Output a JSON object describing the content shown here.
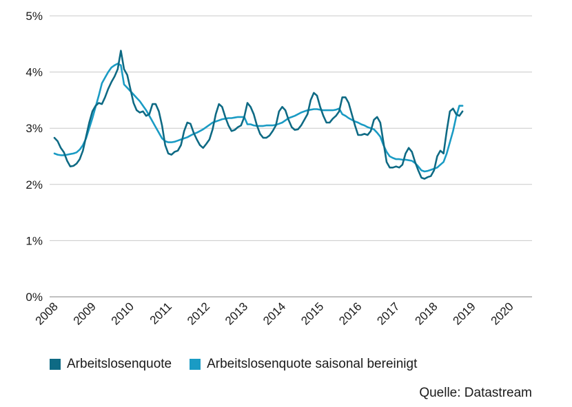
{
  "chart_data": {
    "type": "line",
    "ylim": [
      0,
      5
    ],
    "yticks": [
      "0%",
      "1%",
      "2%",
      "3%",
      "4%",
      "5%"
    ],
    "xticks": [
      "2008",
      "2009",
      "2010",
      "2011",
      "2012",
      "2013",
      "2014",
      "2015",
      "2016",
      "2017",
      "2018",
      "2019",
      "2020"
    ],
    "grid": "horizontal",
    "legend_position": "bottom",
    "x_start": 2008.0,
    "x_step": 0.08333,
    "series": [
      {
        "name": "Arbeitslosenquote",
        "color": "#0e6a84",
        "values": [
          2.83,
          2.77,
          2.65,
          2.57,
          2.42,
          2.32,
          2.33,
          2.37,
          2.45,
          2.6,
          2.85,
          3.1,
          3.3,
          3.4,
          3.45,
          3.43,
          3.55,
          3.7,
          3.82,
          3.92,
          4.05,
          4.38,
          4.05,
          3.95,
          3.7,
          3.45,
          3.32,
          3.28,
          3.3,
          3.22,
          3.25,
          3.43,
          3.43,
          3.3,
          3.05,
          2.7,
          2.55,
          2.53,
          2.58,
          2.6,
          2.7,
          2.95,
          3.1,
          3.08,
          2.92,
          2.8,
          2.7,
          2.65,
          2.72,
          2.8,
          2.98,
          3.25,
          3.43,
          3.38,
          3.2,
          3.05,
          2.95,
          2.97,
          3.02,
          3.05,
          3.2,
          3.45,
          3.38,
          3.25,
          3.05,
          2.9,
          2.83,
          2.83,
          2.87,
          2.95,
          3.05,
          3.3,
          3.38,
          3.32,
          3.15,
          3.02,
          2.97,
          2.98,
          3.05,
          3.15,
          3.25,
          3.5,
          3.63,
          3.58,
          3.38,
          3.22,
          3.1,
          3.1,
          3.17,
          3.22,
          3.3,
          3.55,
          3.55,
          3.45,
          3.25,
          3.05,
          2.88,
          2.88,
          2.9,
          2.88,
          2.95,
          3.15,
          3.2,
          3.1,
          2.75,
          2.4,
          2.3,
          2.3,
          2.32,
          2.3,
          2.35,
          2.55,
          2.65,
          2.58,
          2.4,
          2.25,
          2.12,
          2.1,
          2.13,
          2.15,
          2.25,
          2.5,
          2.6,
          2.55,
          2.95,
          3.3,
          3.35,
          3.25,
          3.22,
          3.3
        ]
      },
      {
        "name": "Arbeitslosenquote saisonal bereinigt",
        "color": "#1a9bc4",
        "values": [
          2.55,
          2.53,
          2.52,
          2.52,
          2.53,
          2.54,
          2.55,
          2.57,
          2.62,
          2.7,
          2.82,
          3.0,
          3.18,
          3.38,
          3.58,
          3.8,
          3.9,
          4.0,
          4.08,
          4.12,
          4.15,
          4.12,
          3.78,
          3.72,
          3.66,
          3.6,
          3.54,
          3.48,
          3.4,
          3.32,
          3.22,
          3.12,
          3.02,
          2.92,
          2.82,
          2.77,
          2.75,
          2.75,
          2.76,
          2.78,
          2.8,
          2.82,
          2.84,
          2.87,
          2.9,
          2.92,
          2.95,
          2.98,
          3.02,
          3.06,
          3.1,
          3.12,
          3.14,
          3.16,
          3.17,
          3.18,
          3.18,
          3.19,
          3.2,
          3.2,
          3.2,
          3.07,
          3.07,
          3.05,
          3.04,
          3.04,
          3.04,
          3.05,
          3.05,
          3.05,
          3.06,
          3.08,
          3.1,
          3.14,
          3.18,
          3.2,
          3.22,
          3.25,
          3.28,
          3.3,
          3.32,
          3.33,
          3.34,
          3.34,
          3.33,
          3.32,
          3.32,
          3.32,
          3.32,
          3.33,
          3.35,
          3.25,
          3.22,
          3.18,
          3.15,
          3.12,
          3.1,
          3.07,
          3.05,
          3.02,
          3.0,
          2.98,
          2.92,
          2.85,
          2.7,
          2.58,
          2.5,
          2.47,
          2.45,
          2.45,
          2.44,
          2.44,
          2.43,
          2.42,
          2.38,
          2.32,
          2.25,
          2.23,
          2.24,
          2.26,
          2.28,
          2.3,
          2.35,
          2.4,
          2.55,
          2.75,
          2.95,
          3.2,
          3.4,
          3.4
        ]
      }
    ]
  },
  "source": "Quelle: Datastream"
}
